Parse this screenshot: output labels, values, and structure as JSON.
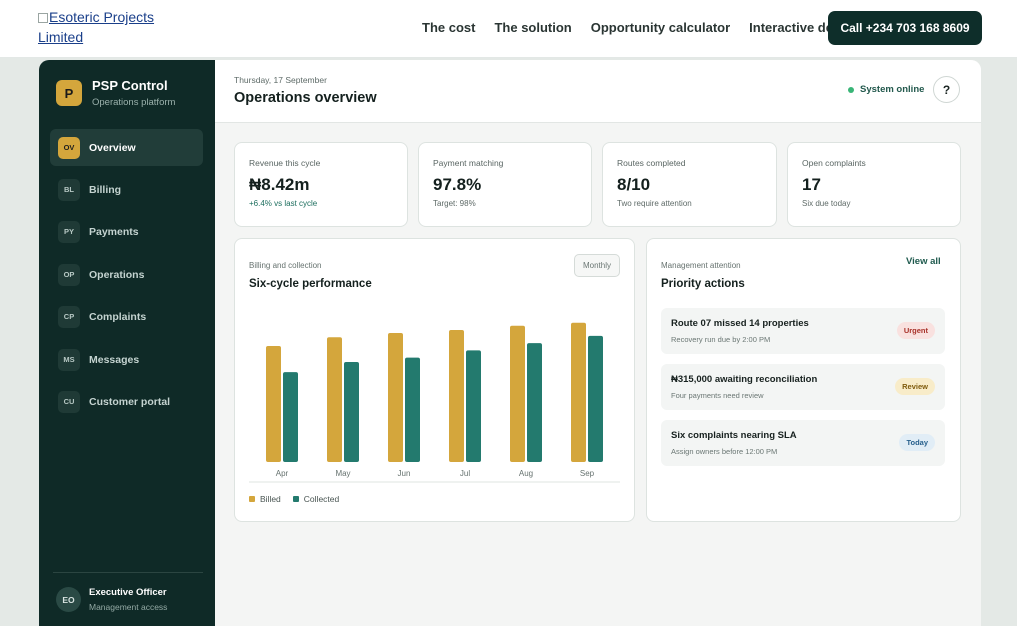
{
  "topnav": {
    "logo_alt": "Esoteric Projects Limited",
    "links": [
      "The cost",
      "The solution",
      "Opportunity calculator",
      "Interactive demo"
    ],
    "call_label": "Call +234 703 168 8609"
  },
  "sidebar": {
    "brand_mark": "P",
    "brand_name": "PSP Control",
    "brand_sub": "Operations platform",
    "items": [
      {
        "code": "OV",
        "label": "Overview",
        "active": true
      },
      {
        "code": "BL",
        "label": "Billing",
        "active": false
      },
      {
        "code": "PY",
        "label": "Payments",
        "active": false
      },
      {
        "code": "OP",
        "label": "Operations",
        "active": false
      },
      {
        "code": "CP",
        "label": "Complaints",
        "active": false
      },
      {
        "code": "MS",
        "label": "Messages",
        "active": false
      },
      {
        "code": "CU",
        "label": "Customer portal",
        "active": false
      }
    ],
    "user": {
      "initials": "EO",
      "name": "Executive Officer",
      "role": "Management access"
    }
  },
  "header": {
    "date": "Thursday, 17 September",
    "title": "Operations overview",
    "status": "System online",
    "help": "?"
  },
  "stats": [
    {
      "label": "Revenue this cycle",
      "value": "₦8.42m",
      "sub": "+6.4% vs last cycle",
      "positive": true
    },
    {
      "label": "Payment matching",
      "value": "97.8%",
      "sub": "Target: 98%",
      "positive": false
    },
    {
      "label": "Routes completed",
      "value": "8/10",
      "sub": "Two require attention",
      "positive": false
    },
    {
      "label": "Open complaints",
      "value": "17",
      "sub": "Six due today",
      "positive": false
    }
  ],
  "chart_panel": {
    "kicker": "Billing and collection",
    "title": "Six-cycle performance",
    "period": "Monthly"
  },
  "chart_data": {
    "type": "bar",
    "categories": [
      "Apr",
      "May",
      "Jun",
      "Jul",
      "Aug",
      "Sep"
    ],
    "series": [
      {
        "name": "Billed",
        "values": [
          80,
          86,
          89,
          91,
          94,
          96
        ],
        "color": "#d4a63c"
      },
      {
        "name": "Collected",
        "values": [
          62,
          69,
          72,
          77,
          82,
          87
        ],
        "color": "#237a6e"
      }
    ],
    "ylim": [
      0,
      100
    ],
    "grid": false,
    "legend": "bottom-left"
  },
  "priority": {
    "kicker": "Management attention",
    "title": "Priority actions",
    "view_all": "View all",
    "items": [
      {
        "title": "Route 07 missed 14 properties",
        "sub": "Recovery run due by 2:00 PM",
        "badge": "Urgent",
        "badge_bg": "#f9e1df",
        "badge_fg": "#a8322a"
      },
      {
        "title": "₦315,000 awaiting reconciliation",
        "sub": "Four payments need review",
        "badge": "Review",
        "badge_bg": "#f8ecc9",
        "badge_fg": "#7f5b0d"
      },
      {
        "title": "Six complaints nearing SLA",
        "sub": "Assign owners before 12:00 PM",
        "badge": "Today",
        "badge_bg": "#e1edf6",
        "badge_fg": "#265f8c"
      }
    ]
  },
  "colors": {
    "accent": "#d4a63c",
    "dark": "#0f2a27",
    "teal": "#237a6e",
    "online": "#39b577"
  }
}
